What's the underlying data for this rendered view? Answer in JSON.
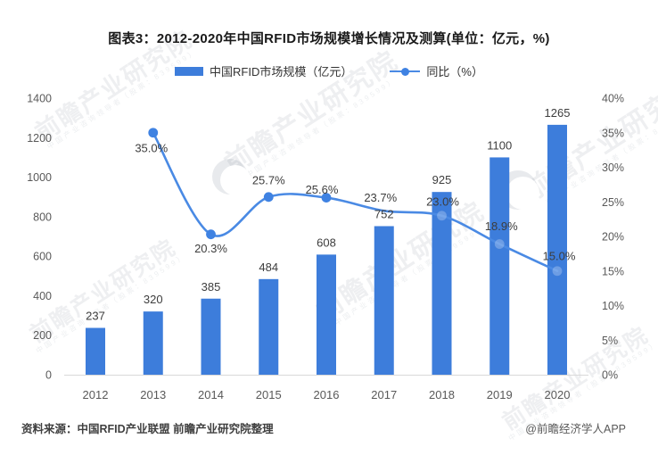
{
  "title": "图表3：2012-2020年中国RFID市场规模增长情况及测算(单位：亿元，%)",
  "legend": {
    "bar_label": "中国RFID市场规模（亿元）",
    "line_label": "同比（%）"
  },
  "chart_data": {
    "type": "bar+line",
    "title": "图表3：2012-2020年中国RFID市场规模增长情况及测算(单位：亿元，%)",
    "categories": [
      "2012",
      "2013",
      "2014",
      "2015",
      "2016",
      "2017",
      "2018",
      "2019",
      "2020"
    ],
    "series": [
      {
        "name": "中国RFID市场规模（亿元）",
        "type": "bar",
        "axis": "left",
        "values": [
          237,
          320,
          385,
          484,
          608,
          752,
          925,
          1100,
          1265
        ],
        "labels": [
          "237",
          "320",
          "385",
          "484",
          "608",
          "752",
          "925",
          "1100",
          "1265"
        ],
        "color": "#3D7DDB"
      },
      {
        "name": "同比（%）",
        "type": "line",
        "axis": "right",
        "values": [
          null,
          35.0,
          20.3,
          25.7,
          25.6,
          23.7,
          23.0,
          18.9,
          15.0
        ],
        "labels": [
          "",
          "35.0%",
          "20.3%",
          "25.7%",
          "25.6%",
          "23.7%",
          "23.0%",
          "18.9%",
          "15.0%"
        ],
        "color": "#4A8AE4",
        "marker_color": "#3F82E2"
      }
    ],
    "left_axis": {
      "min": 0,
      "max": 1400,
      "step": 200,
      "ticks": [
        "0",
        "200",
        "400",
        "600",
        "800",
        "1000",
        "1200",
        "1400"
      ]
    },
    "right_axis": {
      "min": 0,
      "max": 40,
      "step": 5,
      "ticks": [
        "0%",
        "5%",
        "10%",
        "15%",
        "20%",
        "25%",
        "30%",
        "35%",
        "40%"
      ]
    },
    "grid": false,
    "legend_position": "top"
  },
  "footer": {
    "source": "资料来源：中国RFID产业联盟 前瞻产业研究院整理",
    "credit": "@前瞻经济学人APP"
  },
  "watermark": {
    "text": "前瞻产业研究院",
    "subtext": "中国产业咨询领导者（股票：839599）"
  },
  "colors": {
    "bar": "#3D7DDB",
    "line": "#4A8AE4",
    "axis_line": "#d9d9d9"
  }
}
